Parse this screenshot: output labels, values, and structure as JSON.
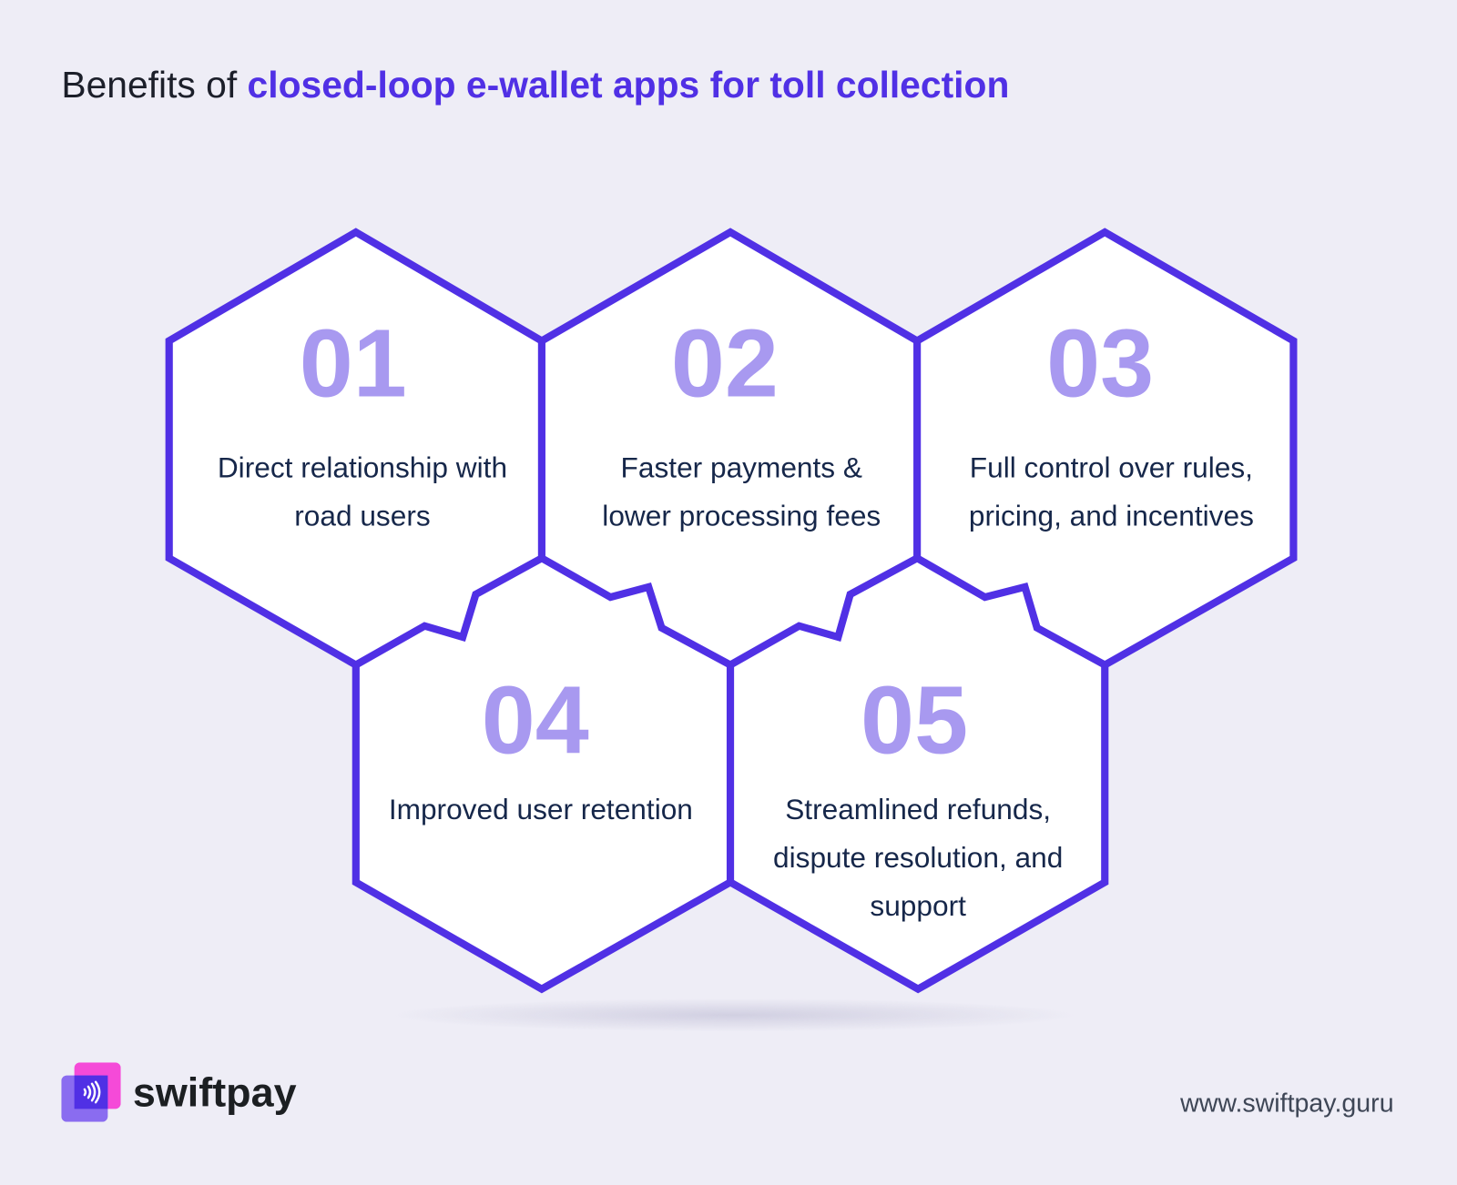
{
  "title": {
    "prefix": "Benefits of ",
    "highlight": "closed-loop e-wallet apps for toll collection"
  },
  "benefits": [
    {
      "number": "01",
      "text": "Direct relationship with road users"
    },
    {
      "number": "02",
      "text": "Faster payments & lower processing fees"
    },
    {
      "number": "03",
      "text": "Full control over rules, pricing, and incentives"
    },
    {
      "number": "04",
      "text": "Improved user retention"
    },
    {
      "number": "05",
      "text": "Streamlined refunds, dispute resolution, and support"
    }
  ],
  "footer": {
    "brand": "swiftpay",
    "url": "www.swiftpay.guru",
    "logo_icon": "contactless-icon"
  },
  "colors": {
    "accent": "#5030e5",
    "number": "#a899f0",
    "background": "#eeedf6",
    "logo_pink": "#f54ad8"
  }
}
